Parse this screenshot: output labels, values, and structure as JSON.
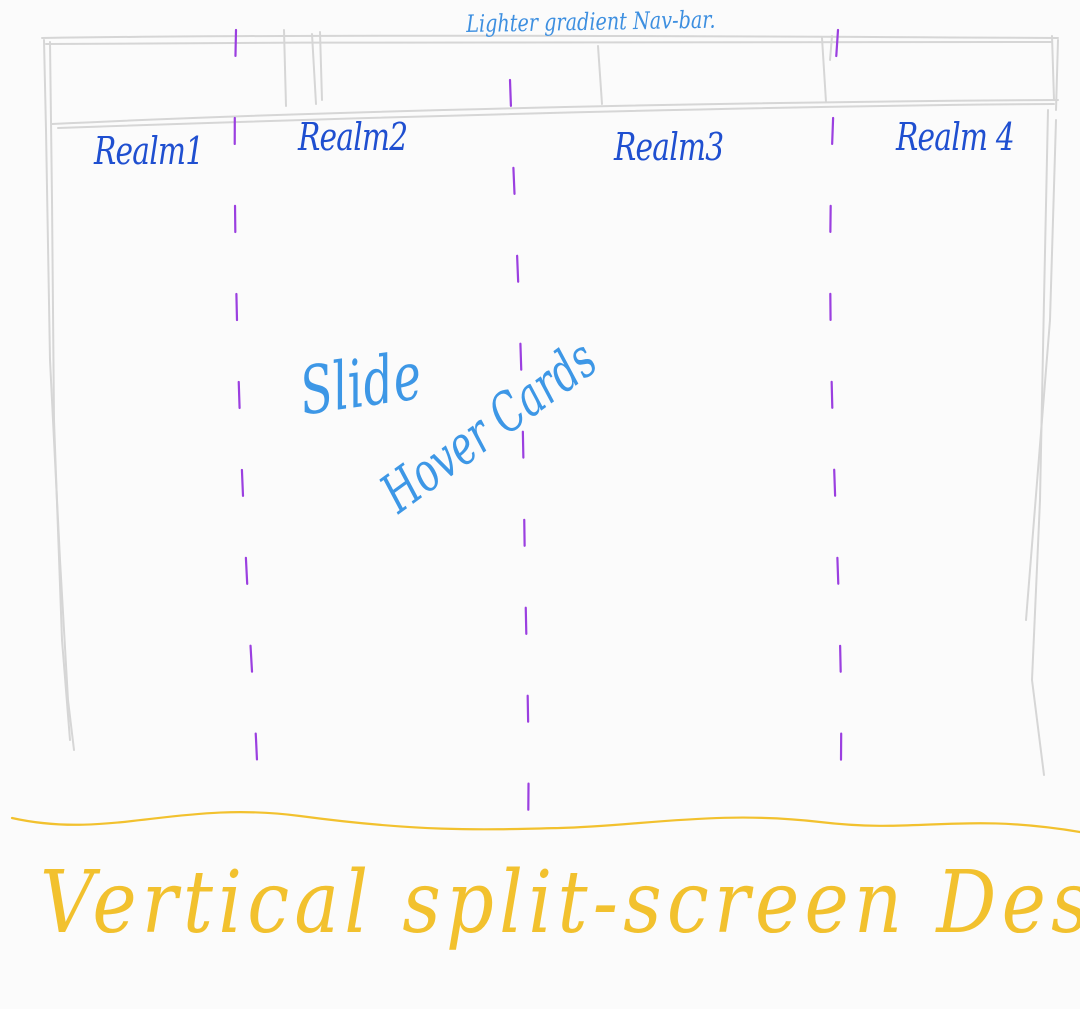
{
  "navbar": {
    "note": "Lighter gradient Nav-bar."
  },
  "realms": [
    {
      "label": "Realm1"
    },
    {
      "label": "Realm2"
    },
    {
      "label": "Realm3"
    },
    {
      "label": "Realm 4"
    }
  ],
  "annotation": {
    "line1": "Slide",
    "line2": "Hover Cards"
  },
  "footer": {
    "title": "Vertical split-screen Designs."
  },
  "colors": {
    "frame": "#d6d6d6",
    "divider": "#9b3fe0",
    "realm_text": "#1f4fd0",
    "annotation_text": "#3d97e6",
    "footer_text": "#f2c12e",
    "background": "#fbfbfb"
  }
}
